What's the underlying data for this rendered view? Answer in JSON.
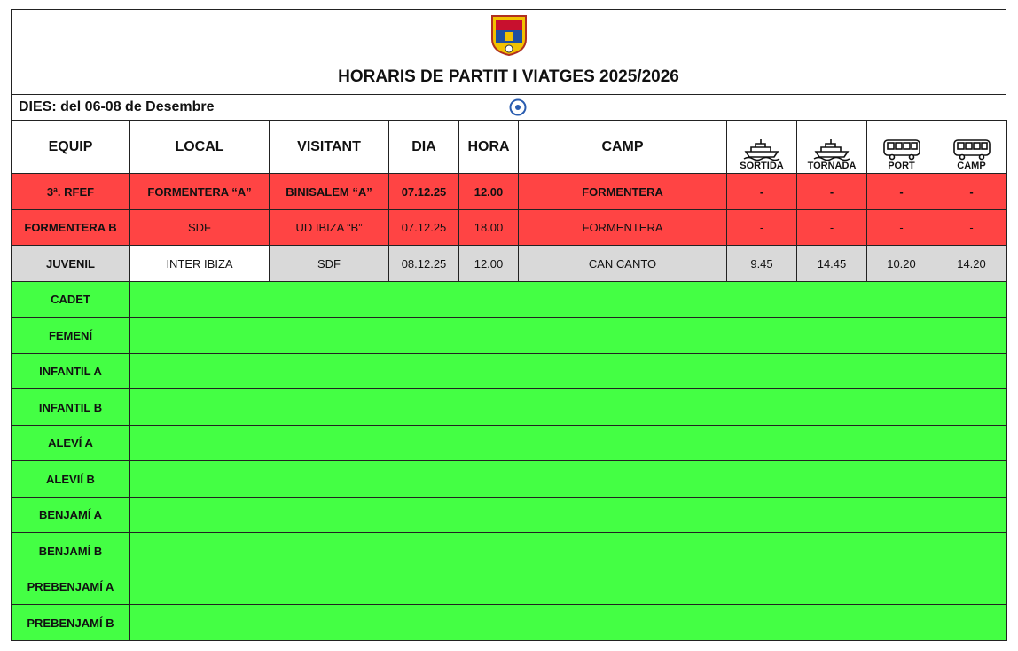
{
  "header": {
    "title": "HORARIS DE PARTIT I VIATGES  2025/2026",
    "dates": "DIES: del 06-08 de Desembre"
  },
  "table": {
    "columns": [
      "EQUIP",
      "LOCAL",
      "VISITANT",
      "DIA",
      "HORA",
      "CAMP",
      "SORTIDA",
      "TORNADA",
      "PORT",
      "CAMP"
    ],
    "rows": [
      {
        "color": "#ff4444",
        "bold": true,
        "cells": [
          "3ª. RFEF",
          "FORMENTERA “A”",
          "BINISALEM “A”",
          "07.12.25",
          "12.00",
          "FORMENTERA",
          "-",
          "-",
          "-",
          "-"
        ]
      },
      {
        "color": "#ff4444",
        "bold": false,
        "cells": [
          "FORMENTERA B",
          "SDF",
          "UD IBIZA “B”",
          "07.12.25",
          "18.00",
          "FORMENTERA",
          "-",
          "-",
          "-",
          "-"
        ]
      },
      {
        "color": "#d9d9d9",
        "bold": false,
        "cells": [
          "JUVENIL",
          "INTER IBIZA",
          "SDF",
          "08.12.25",
          "12.00",
          "CAN CANTO",
          "9.45",
          "14.45",
          "10.20",
          "14.20"
        ]
      },
      {
        "color": "#44ff44",
        "bold": false,
        "cells": [
          "CADET"
        ]
      },
      {
        "color": "#44ff44",
        "bold": false,
        "cells": [
          "FEMENÍ"
        ]
      },
      {
        "color": "#44ff44",
        "bold": false,
        "cells": [
          "INFANTIL A"
        ]
      },
      {
        "color": "#44ff44",
        "bold": false,
        "cells": [
          "INFANTIL B"
        ]
      },
      {
        "color": "#44ff44",
        "bold": false,
        "cells": [
          "ALEVÍ A"
        ]
      },
      {
        "color": "#44ff44",
        "bold": false,
        "cells": [
          "ALEVIÍ B"
        ]
      },
      {
        "color": "#44ff44",
        "bold": false,
        "cells": [
          "BENJAMÍ A"
        ]
      },
      {
        "color": "#44ff44",
        "bold": false,
        "cells": [
          "BENJAMÍ B"
        ]
      },
      {
        "color": "#44ff44",
        "bold": false,
        "cells": [
          "PREBENJAMÍ A"
        ]
      },
      {
        "color": "#44ff44",
        "bold": false,
        "cells": [
          "PREBENJAMÍ B"
        ]
      }
    ]
  }
}
